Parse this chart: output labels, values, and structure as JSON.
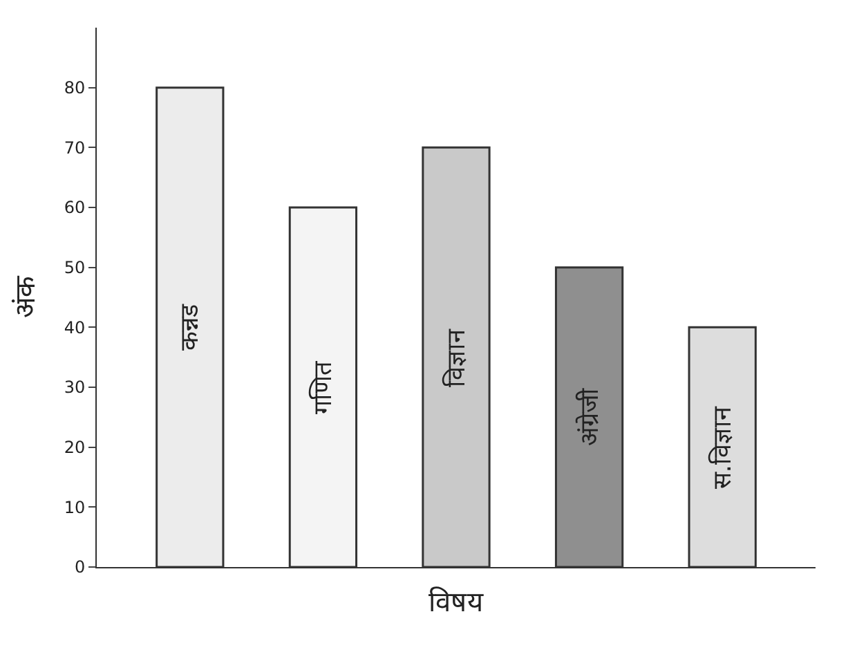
{
  "chart_data": {
    "type": "bar",
    "categories": [
      "कन्नड",
      "गणित",
      "विज्ञान",
      "अंग्रेजी",
      "स.विज्ञान"
    ],
    "values": [
      80,
      60,
      70,
      50,
      40
    ],
    "colors": [
      "#ececec",
      "#f4f4f4",
      "#c9c9c9",
      "#8f8f8f",
      "#dddddd"
    ],
    "xlabel": "विषय",
    "ylabel": "अंक",
    "ylim": [
      0,
      90
    ],
    "yticks": [
      0,
      10,
      20,
      30,
      40,
      50,
      60,
      70,
      80
    ]
  }
}
